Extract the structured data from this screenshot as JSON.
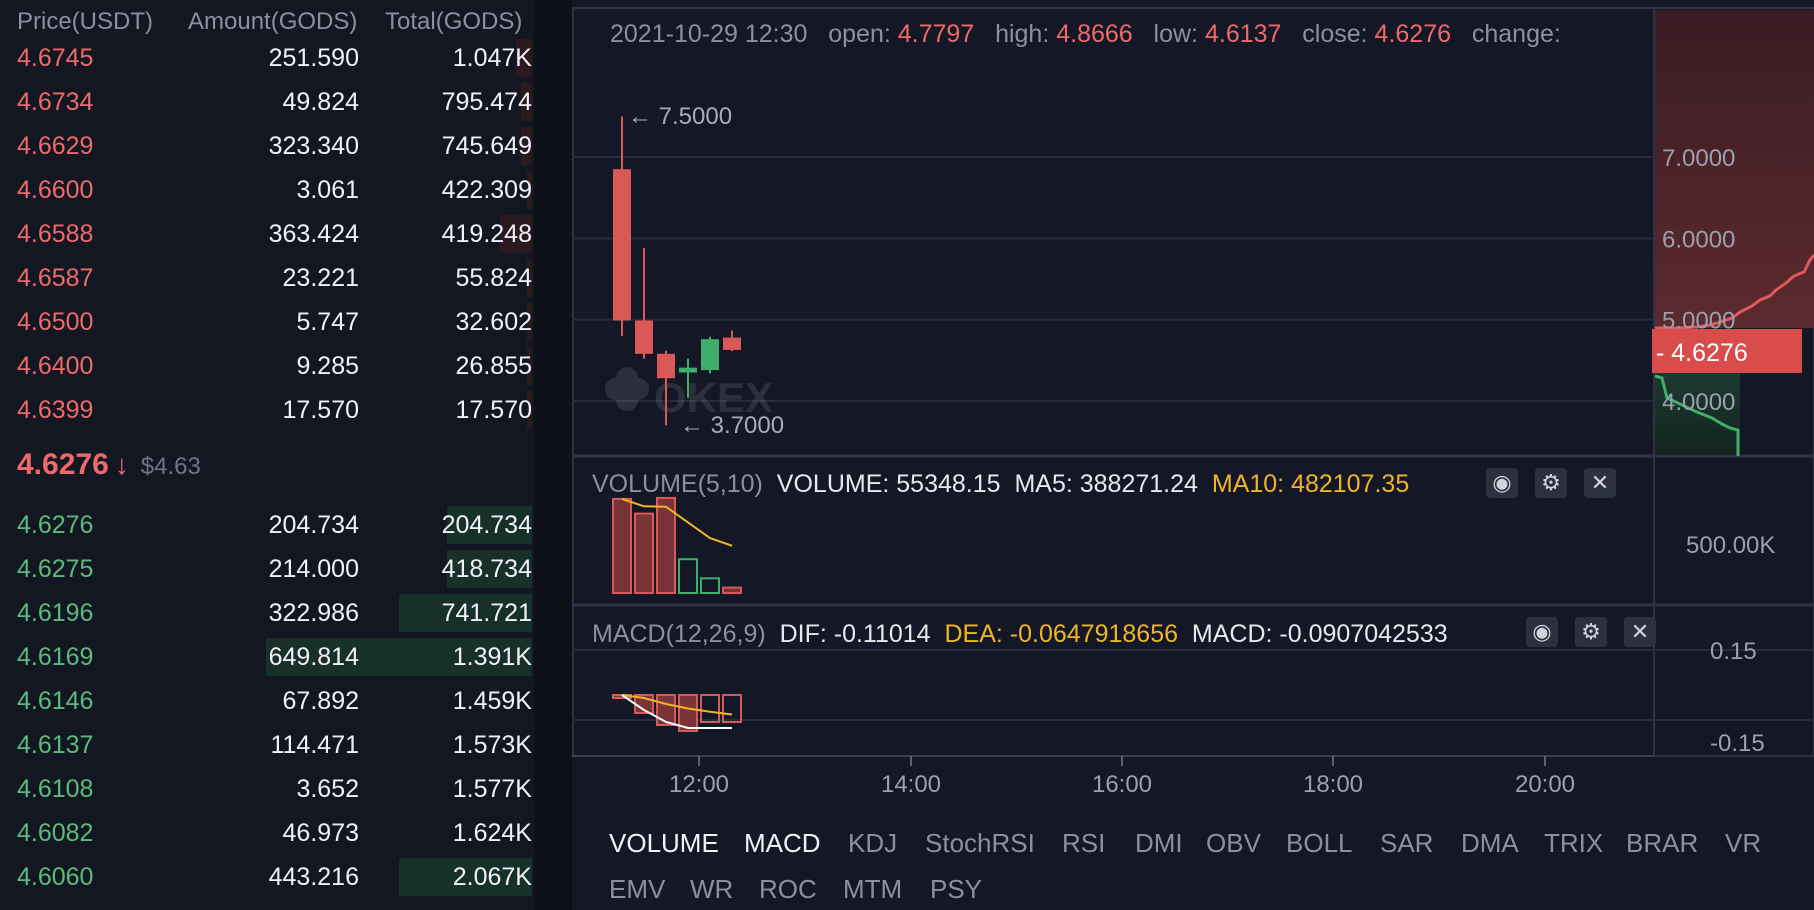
{
  "orderbook": {
    "headers": {
      "price": "Price(USDT)",
      "amount": "Amount(GODS)",
      "total": "Total(GODS)"
    },
    "asks": [
      {
        "price": "4.6745",
        "amount": "251.590",
        "total": "1.047K",
        "depth": 0.03
      },
      {
        "price": "4.6734",
        "amount": "49.824",
        "total": "795.474",
        "depth": 0.02
      },
      {
        "price": "4.6629",
        "amount": "323.340",
        "total": "745.649",
        "depth": 0.02
      },
      {
        "price": "4.6600",
        "amount": "3.061",
        "total": "422.309",
        "depth": 0.01
      },
      {
        "price": "4.6588",
        "amount": "363.424",
        "total": "419.248",
        "depth": 0.06
      },
      {
        "price": "4.6587",
        "amount": "23.221",
        "total": "55.824",
        "depth": 0.01
      },
      {
        "price": "4.6500",
        "amount": "5.747",
        "total": "32.602",
        "depth": 0.01
      },
      {
        "price": "4.6400",
        "amount": "9.285",
        "total": "26.855",
        "depth": 0.01
      },
      {
        "price": "4.6399",
        "amount": "17.570",
        "total": "17.570",
        "depth": 0.01
      }
    ],
    "last_price": {
      "price": "4.6276",
      "arrow": "↓",
      "usd": "$4.63"
    },
    "bids": [
      {
        "price": "4.6276",
        "amount": "204.734",
        "total": "204.734",
        "depth": 0.16
      },
      {
        "price": "4.6275",
        "amount": "214.000",
        "total": "418.734",
        "depth": 0.16
      },
      {
        "price": "4.6196",
        "amount": "322.986",
        "total": "741.721",
        "depth": 0.25
      },
      {
        "price": "4.6169",
        "amount": "649.814",
        "total": "1.391K",
        "depth": 0.5
      },
      {
        "price": "4.6146",
        "amount": "67.892",
        "total": "1.459K",
        "depth": 0.0
      },
      {
        "price": "4.6137",
        "amount": "114.471",
        "total": "1.573K",
        "depth": 0.0
      },
      {
        "price": "4.6108",
        "amount": "3.652",
        "total": "1.577K",
        "depth": 0.0
      },
      {
        "price": "4.6082",
        "amount": "46.973",
        "total": "1.624K",
        "depth": 0.0
      },
      {
        "price": "4.6060",
        "amount": "443.216",
        "total": "2.067K",
        "depth": 0.25
      }
    ]
  },
  "chart": {
    "info": {
      "date": "2021-10-29 12:30",
      "open_label": "open:",
      "open": "4.7797",
      "high_label": "high:",
      "high": "4.8666",
      "low_label": "low:",
      "low": "4.6137",
      "close_label": "close:",
      "close": "4.6276",
      "change_label": "change:"
    },
    "max_marker": "← 7.5000",
    "min_marker": "← 3.7000",
    "watermark": "OKEX",
    "price_axis": [
      "7.0000",
      "6.0000",
      "5.0000",
      "4.0000"
    ],
    "price_tag": "- 4.6276",
    "volume": {
      "label": "VOLUME(5,10)",
      "value": "VOLUME: 55348.15",
      "ma5": "MA5: 388271.24",
      "ma10": "MA10: 482107.35",
      "axis": "500.00K"
    },
    "macd": {
      "label": "MACD(12,26,9)",
      "dif": "DIF: -0.11014",
      "dea": "DEA: -0.0647918656",
      "macd": "MACD: -0.0907042533",
      "axis": [
        "0.15",
        "-0.15"
      ]
    },
    "time_axis": [
      "12:00",
      "14:00",
      "16:00",
      "18:00",
      "20:00"
    ],
    "colors": {
      "up": "#3fae6a",
      "down": "#d95858",
      "ma10": "#f0b429",
      "dea": "#f0b429",
      "dif": "#ffffff"
    }
  },
  "chart_data": {
    "type": "candlestick",
    "time_axis": [
      "12:00",
      "14:00",
      "16:00",
      "18:00",
      "20:00"
    ],
    "candles": [
      {
        "open": 6.85,
        "high": 7.5,
        "low": 4.8,
        "close": 4.99
      },
      {
        "open": 4.99,
        "high": 5.88,
        "low": 4.52,
        "close": 4.58
      },
      {
        "open": 4.58,
        "high": 4.62,
        "low": 3.7,
        "close": 4.28
      },
      {
        "open": 4.35,
        "high": 4.52,
        "low": 4.04,
        "close": 4.41
      },
      {
        "open": 4.38,
        "high": 4.79,
        "low": 4.34,
        "close": 4.76
      },
      {
        "open": 4.7797,
        "high": 4.8666,
        "low": 4.6137,
        "close": 4.6276
      }
    ],
    "volume": [
      960000,
      810000,
      970000,
      345000,
      150000,
      55348.15
    ],
    "volume_ma10": [
      960000,
      885000,
      880000,
      720000,
      560000,
      482107.35
    ],
    "macd_hist": [
      -0.01,
      -0.06,
      -0.1,
      -0.12,
      -0.09,
      -0.09
    ],
    "dif": [
      0.0,
      -0.05,
      -0.09,
      -0.11,
      -0.11,
      -0.11
    ],
    "dea": [
      0.0,
      -0.01,
      -0.03,
      -0.045,
      -0.056,
      -0.065
    ],
    "price_ylim": [
      3.5,
      7.9
    ],
    "volume_axis_tick": "500.00K",
    "macd_ylim": [
      -0.2,
      0.2
    ]
  },
  "tabs": {
    "row1": [
      "VOLUME",
      "MACD",
      "KDJ",
      "StochRSI",
      "RSI",
      "DMI",
      "OBV",
      "BOLL",
      "SAR",
      "DMA",
      "TRIX",
      "BRAR",
      "VR"
    ],
    "row2": [
      "EMV",
      "WR",
      "ROC",
      "MTM",
      "PSY"
    ],
    "active": [
      "VOLUME",
      "MACD"
    ]
  }
}
